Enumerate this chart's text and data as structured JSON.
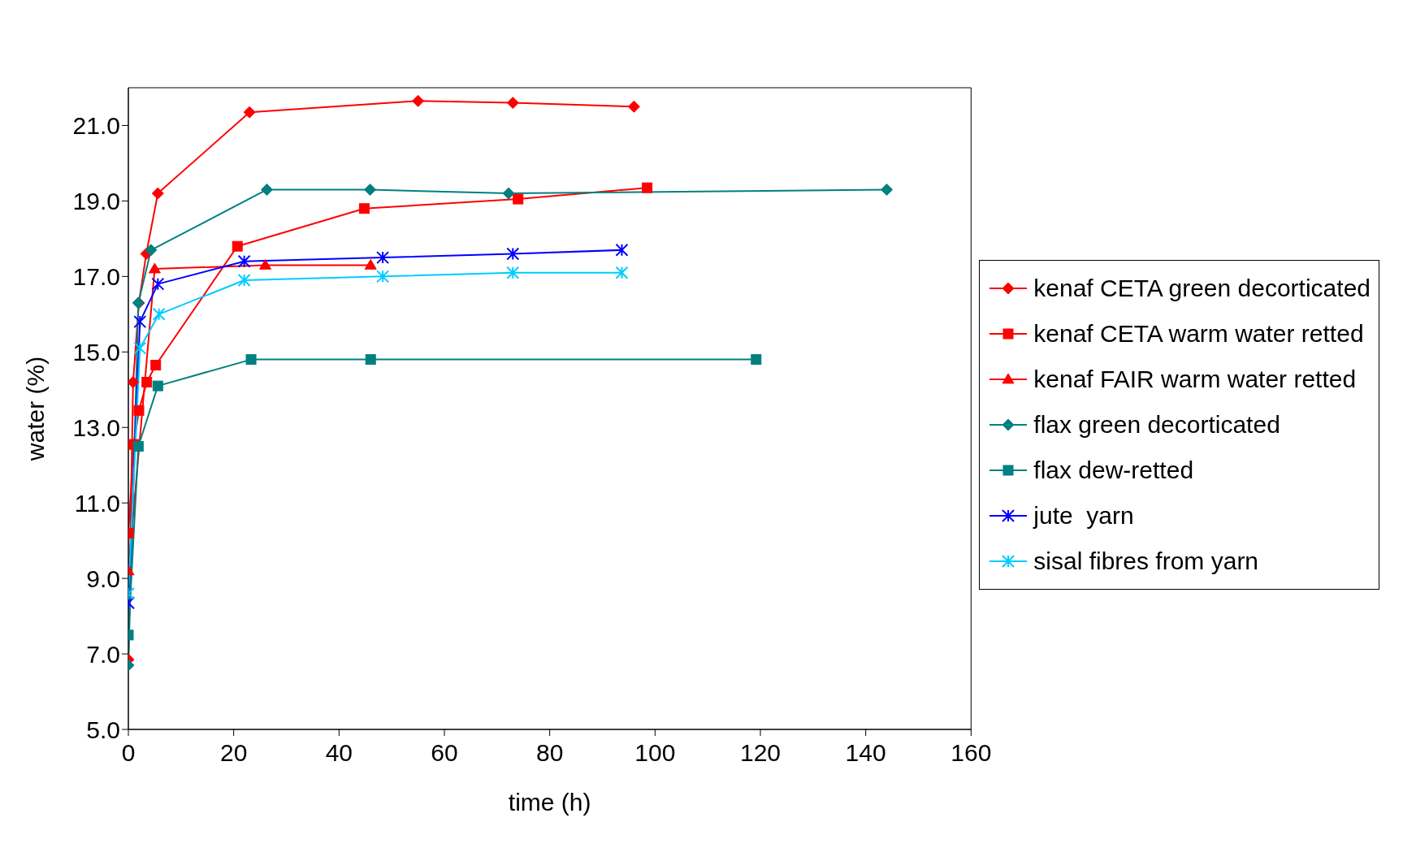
{
  "chart_data": {
    "type": "line",
    "xlabel": "time (h)",
    "ylabel": "water (%)",
    "xlim": [
      0,
      160
    ],
    "xticks": [
      0,
      20,
      40,
      60,
      80,
      100,
      120,
      140,
      160
    ],
    "ylim": [
      5,
      22
    ],
    "yticks": [
      {
        "value": 5,
        "label": "5.0"
      },
      {
        "value": 7,
        "label": "7.0"
      },
      {
        "value": 9,
        "label": "9.0"
      },
      {
        "value": 11,
        "label": "11.0"
      },
      {
        "value": 13,
        "label": "13.0"
      },
      {
        "value": 15,
        "label": "15.0"
      },
      {
        "value": 17,
        "label": "17.0"
      },
      {
        "value": 19,
        "label": "19.0"
      },
      {
        "value": 21,
        "label": "21.0"
      }
    ],
    "grid": false,
    "legend": "right",
    "line_style": "solid",
    "series": [
      {
        "name": "kenaf CETA green decorticated",
        "color": "#ff0000",
        "marker": "diamond",
        "x": [
          0,
          0.9,
          2,
          3.4,
          5.6,
          23,
          55,
          73,
          96
        ],
        "values": [
          6.85,
          14.2,
          16.3,
          17.6,
          19.2,
          21.35,
          21.65,
          21.6,
          21.5
        ]
      },
      {
        "name": "kenaf CETA warm water retted",
        "color": "#ff0000",
        "marker": "square",
        "x": [
          0,
          1,
          2,
          3.5,
          5.2,
          20.7,
          44.8,
          74,
          98.5
        ],
        "values": [
          10.2,
          12.55,
          13.45,
          14.2,
          14.65,
          17.8,
          18.8,
          19.05,
          19.35
        ]
      },
      {
        "name": "kenaf FAIR warm water retted",
        "color": "#ff0000",
        "marker": "triangle",
        "x": [
          0,
          5,
          26,
          46
        ],
        "values": [
          9.2,
          17.2,
          17.3,
          17.3
        ]
      },
      {
        "name": "flax green decorticated",
        "color": "#008080",
        "marker": "diamond",
        "x": [
          0,
          1.9,
          4.3,
          26.3,
          45.9,
          72.2,
          144
        ],
        "values": [
          6.7,
          16.3,
          17.7,
          19.3,
          19.3,
          19.2,
          19.3
        ]
      },
      {
        "name": "flax dew-retted",
        "color": "#008080",
        "marker": "square",
        "x": [
          0,
          1.9,
          5.6,
          23.3,
          46,
          119.2
        ],
        "values": [
          7.5,
          12.5,
          14.1,
          14.8,
          14.8,
          14.8
        ]
      },
      {
        "name": "jute  yarn",
        "color": "#0000ff",
        "marker": "cross",
        "x": [
          0,
          2.2,
          5.6,
          22,
          48.3,
          73,
          93.7
        ],
        "values": [
          8.35,
          15.8,
          16.8,
          17.4,
          17.5,
          17.6,
          17.7
        ]
      },
      {
        "name": "sisal fibres from yarn",
        "color": "#00ccff",
        "marker": "cross",
        "x": [
          0,
          2.2,
          5.8,
          22,
          48.3,
          73,
          93.7
        ],
        "values": [
          8.6,
          15.1,
          16.0,
          16.9,
          17.0,
          17.1,
          17.1
        ]
      }
    ]
  }
}
